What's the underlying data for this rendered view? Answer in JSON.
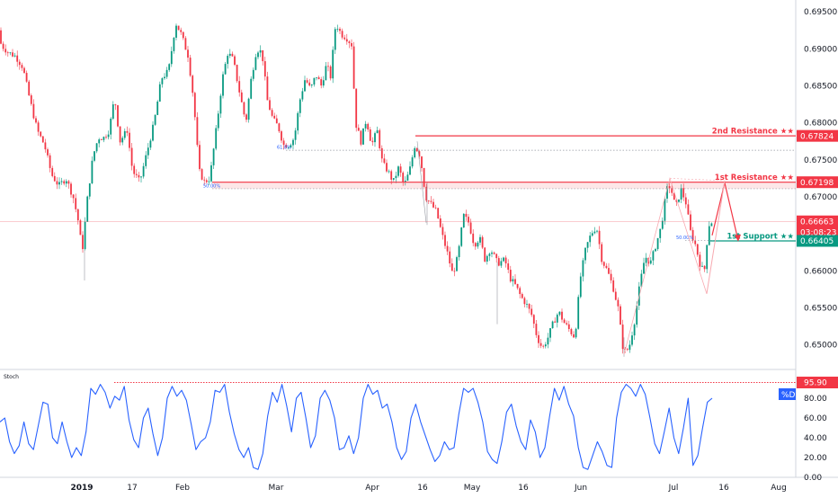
{
  "chart_data": [
    {
      "type": "candlestick",
      "x_ticks": [
        "2019",
        "17",
        "Feb",
        "Mar",
        "Apr",
        "16",
        "May",
        "16",
        "Jun",
        "Jul",
        "16",
        "Aug"
      ],
      "y_ticks": [
        "0.69500",
        "0.69000",
        "0.68500",
        "0.68000",
        "0.67500",
        "0.67000",
        "0.66500",
        "0.66000",
        "0.65500",
        "0.65000"
      ],
      "ylim": [
        0.6468,
        0.6966
      ],
      "price_anchors": [
        [
          0,
          0.6925
        ],
        [
          4,
          0.6905
        ],
        [
          12,
          0.6895
        ],
        [
          20,
          0.689
        ],
        [
          28,
          0.6875
        ],
        [
          36,
          0.683
        ],
        [
          44,
          0.679
        ],
        [
          52,
          0.677
        ],
        [
          60,
          0.673
        ],
        [
          68,
          0.6715
        ],
        [
          76,
          0.6725
        ],
        [
          84,
          0.67
        ],
        [
          90,
          0.6665
        ],
        [
          94,
          0.6625
        ],
        [
          100,
          0.67
        ],
        [
          106,
          0.6755
        ],
        [
          112,
          0.678
        ],
        [
          118,
          0.678
        ],
        [
          124,
          0.679
        ],
        [
          130,
          0.6835
        ],
        [
          136,
          0.6775
        ],
        [
          144,
          0.679
        ],
        [
          150,
          0.6735
        ],
        [
          158,
          0.672
        ],
        [
          166,
          0.676
        ],
        [
          174,
          0.68
        ],
        [
          182,
          0.686
        ],
        [
          190,
          0.687
        ],
        [
          198,
          0.6935
        ],
        [
          204,
          0.692
        ],
        [
          212,
          0.689
        ],
        [
          218,
          0.683
        ],
        [
          224,
          0.6735
        ],
        [
          230,
          0.672
        ],
        [
          236,
          0.6725
        ],
        [
          244,
          0.68
        ],
        [
          250,
          0.686
        ],
        [
          256,
          0.6895
        ],
        [
          262,
          0.6885
        ],
        [
          270,
          0.6835
        ],
        [
          276,
          0.68
        ],
        [
          282,
          0.686
        ],
        [
          288,
          0.69
        ],
        [
          294,
          0.6895
        ],
        [
          300,
          0.683
        ],
        [
          306,
          0.6805
        ],
        [
          312,
          0.6795
        ],
        [
          318,
          0.677
        ],
        [
          324,
          0.677
        ],
        [
          330,
          0.678
        ],
        [
          336,
          0.683
        ],
        [
          342,
          0.686
        ],
        [
          348,
          0.6845
        ],
        [
          354,
          0.6865
        ],
        [
          360,
          0.685
        ],
        [
          366,
          0.688
        ],
        [
          370,
          0.686
        ],
        [
          376,
          0.6935
        ],
        [
          382,
          0.692
        ],
        [
          388,
          0.6915
        ],
        [
          394,
          0.6905
        ],
        [
          398,
          0.68
        ],
        [
          404,
          0.6775
        ],
        [
          410,
          0.6805
        ],
        [
          416,
          0.677
        ],
        [
          422,
          0.679
        ],
        [
          428,
          0.6745
        ],
        [
          434,
          0.6735
        ],
        [
          440,
          0.672
        ],
        [
          446,
          0.674
        ],
        [
          452,
          0.6715
        ],
        [
          458,
          0.6735
        ],
        [
          464,
          0.677
        ],
        [
          470,
          0.6755
        ],
        [
          476,
          0.67
        ],
        [
          482,
          0.669
        ],
        [
          488,
          0.668
        ],
        [
          494,
          0.665
        ],
        [
          500,
          0.6625
        ],
        [
          506,
          0.6595
        ],
        [
          512,
          0.662
        ],
        [
          518,
          0.6675
        ],
        [
          524,
          0.6665
        ],
        [
          530,
          0.6635
        ],
        [
          536,
          0.6645
        ],
        [
          542,
          0.6615
        ],
        [
          548,
          0.663
        ],
        [
          556,
          0.661
        ],
        [
          564,
          0.6615
        ],
        [
          570,
          0.659
        ],
        [
          576,
          0.658
        ],
        [
          582,
          0.6565
        ],
        [
          588,
          0.6555
        ],
        [
          594,
          0.654
        ],
        [
          600,
          0.651
        ],
        [
          606,
          0.6495
        ],
        [
          612,
          0.651
        ],
        [
          618,
          0.653
        ],
        [
          624,
          0.6545
        ],
        [
          630,
          0.653
        ],
        [
          636,
          0.652
        ],
        [
          642,
          0.651
        ],
        [
          648,
          0.659
        ],
        [
          654,
          0.663
        ],
        [
          660,
          0.665
        ],
        [
          666,
          0.666
        ],
        [
          672,
          0.6615
        ],
        [
          678,
          0.66
        ],
        [
          684,
          0.658
        ],
        [
          690,
          0.655
        ],
        [
          696,
          0.649
        ],
        [
          702,
          0.6495
        ],
        [
          708,
          0.653
        ],
        [
          714,
          0.658
        ],
        [
          720,
          0.662
        ],
        [
          726,
          0.661
        ],
        [
          732,
          0.6635
        ],
        [
          738,
          0.666
        ],
        [
          744,
          0.671
        ],
        [
          748,
          0.6715
        ],
        [
          754,
          0.6685
        ],
        [
          760,
          0.671
        ],
        [
          766,
          0.669
        ],
        [
          770,
          0.6655
        ],
        [
          776,
          0.6635
        ],
        [
          782,
          0.6605
        ],
        [
          786,
          0.66
        ],
        [
          790,
          0.6655
        ],
        [
          792,
          0.6666
        ]
      ],
      "horizontal_lines": [
        {
          "name": "2nd Resistance",
          "label": "2nd Resistance ★★",
          "value": 0.67824,
          "price_label": "0.67824",
          "color": "#f23645"
        },
        {
          "name": "1st Resistance",
          "label": "1st Resistance ★★",
          "value": 0.67198,
          "price_label": "0.67198",
          "color": "#f23645"
        },
        {
          "name": "1st Support",
          "label": "1st Support ★★",
          "value": 0.66405,
          "price_label": "0.66405",
          "color": "#089981"
        }
      ],
      "fib_levels": [
        {
          "label": "61.8%",
          "value": 0.6763
        },
        {
          "label": "50.00%",
          "value": 0.6711
        },
        {
          "label": "50.00%",
          "value": 0.6641
        }
      ],
      "current_price": {
        "value": 0.66663,
        "label": "0.66663",
        "countdown": "03:08:23",
        "color": "#f23645"
      },
      "colors": {
        "up": "#089981",
        "down": "#f23645",
        "resistance_zone": "#f23645",
        "support": "#089981"
      },
      "grid": false
    },
    {
      "type": "line",
      "title": "Stoch",
      "series": [
        {
          "name": "%D",
          "color": "#2962ff",
          "values": [
            56,
            60,
            36,
            24,
            32,
            56,
            34,
            28,
            52,
            76,
            74,
            40,
            34,
            56,
            36,
            20,
            30,
            22,
            46,
            90,
            84,
            94,
            86,
            70,
            82,
            78,
            92,
            58,
            38,
            30,
            60,
            70,
            44,
            22,
            40,
            80,
            92,
            82,
            88,
            78,
            54,
            28,
            36,
            40,
            56,
            88,
            86,
            94,
            66,
            44,
            28,
            20,
            30,
            10,
            8,
            24,
            62,
            86,
            76,
            94,
            72,
            46,
            80,
            86,
            60,
            30,
            42,
            80,
            88,
            78,
            60,
            28,
            30,
            42,
            24,
            40,
            80,
            94,
            84,
            88,
            70,
            74,
            56,
            30,
            18,
            26,
            60,
            74,
            56,
            42,
            28,
            16,
            22,
            36,
            28,
            30,
            64,
            90,
            86,
            90,
            76,
            56,
            26,
            18,
            14,
            36,
            66,
            74,
            52,
            36,
            28,
            58,
            46,
            20,
            30,
            62,
            90,
            78,
            92,
            74,
            62,
            30,
            10,
            8,
            22,
            36,
            26,
            12,
            10,
            60,
            86,
            94,
            90,
            82,
            94,
            84,
            60,
            34,
            24,
            46,
            70,
            40,
            24,
            50,
            80,
            12,
            22,
            50,
            76,
            80
          ]
        }
      ],
      "y_ticks": [
        "0.00",
        "20.00",
        "40.00",
        "60.00",
        "80.00"
      ],
      "ylim": [
        0,
        100
      ],
      "reference_line": {
        "value": 95.9,
        "label": "95.90",
        "color": "#f23645"
      },
      "legend_label": "%D"
    }
  ]
}
